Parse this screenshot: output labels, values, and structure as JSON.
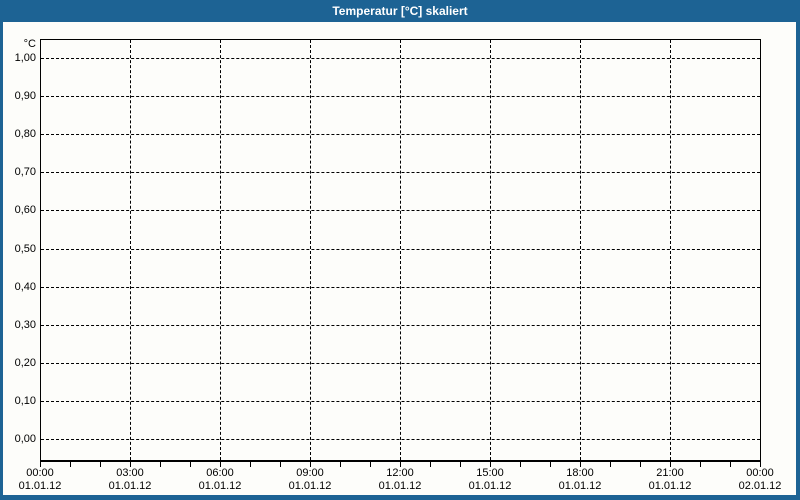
{
  "window": {
    "title": "Temperatur [°C] skaliert",
    "colors": {
      "frame": "#1d6394",
      "title_text": "#ffffff",
      "background": "#fdfdfa",
      "grid": "#000000",
      "text": "#000000"
    }
  },
  "chart_data": {
    "type": "line",
    "title": "Temperatur [°C] skaliert",
    "xlabel": "",
    "ylabel": "°C",
    "ylim": [
      0.0,
      1.0
    ],
    "y_tick_step": 0.1,
    "y_tick_labels": [
      "1,00",
      "0,90",
      "0,80",
      "0,70",
      "0,60",
      "0,50",
      "0,40",
      "0,30",
      "0,20",
      "0,10",
      "0,00"
    ],
    "x_range_hours": 24,
    "x_major_tick_interval_hours": 3,
    "x_minor_tick_interval_hours": 1,
    "x_ticks": [
      {
        "time": "00:00",
        "date": "01.01.12"
      },
      {
        "time": "03:00",
        "date": "01.01.12"
      },
      {
        "time": "06:00",
        "date": "01.01.12"
      },
      {
        "time": "09:00",
        "date": "01.01.12"
      },
      {
        "time": "12:00",
        "date": "01.01.12"
      },
      {
        "time": "15:00",
        "date": "01.01.12"
      },
      {
        "time": "18:00",
        "date": "01.01.12"
      },
      {
        "time": "21:00",
        "date": "01.01.12"
      },
      {
        "time": "00:00",
        "date": "02.01.12"
      }
    ],
    "grid": true,
    "grid_style": "dashed",
    "legend": false,
    "series": []
  }
}
